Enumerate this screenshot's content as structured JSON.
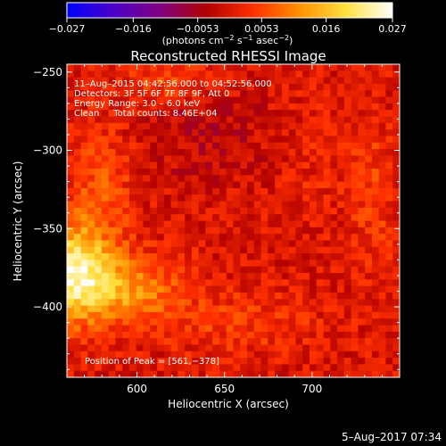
{
  "colorbar": {
    "tick_labels": [
      "−0.027",
      "−0.016",
      "−0.0053",
      "0.0053",
      "0.016",
      "0.027"
    ],
    "units_prefix": "(photons cm",
    "units_exp1": "−2",
    "units_mid1": " s",
    "units_exp2": "−1",
    "units_mid2": " asec",
    "units_exp3": "−2",
    "units_suffix": ")",
    "colors": [
      "#0000ff",
      "#4b00c8",
      "#800080",
      "#b00000",
      "#ff3000",
      "#ff9000",
      "#ffe040",
      "#ffffff"
    ]
  },
  "chart_data": {
    "type": "heatmap",
    "title": "Reconstructed RHESSI Image",
    "xlabel": "Heliocentric X (arcsec)",
    "ylabel": "Heliocentric Y (arcsec)",
    "xlim": [
      560,
      750
    ],
    "ylim": [
      -445,
      -245
    ],
    "x_ticks": [
      600,
      650,
      700
    ],
    "y_ticks": [
      -250,
      -300,
      -350,
      -400
    ],
    "x_tick_labels": [
      "600",
      "650",
      "700"
    ],
    "y_tick_labels": [
      "−250",
      "−300",
      "−350",
      "−400"
    ],
    "value_range": [
      -0.027,
      0.027
    ],
    "annotations": [
      "11–Aug–2015 04:42:56.000 to 04:52:56.000",
      "Detectors: 3F 5F 6F 7F 8F 9F, Att 0",
      "Energy Range: 3.0 – 6.0 keV",
      "Clean     Total counts: 8.46E+04"
    ],
    "peak_label": "Position of Peak = [561,−378]",
    "peak": [
      561,
      -378
    ]
  },
  "footer": {
    "timestamp": "5–Aug–2017 07:34"
  }
}
